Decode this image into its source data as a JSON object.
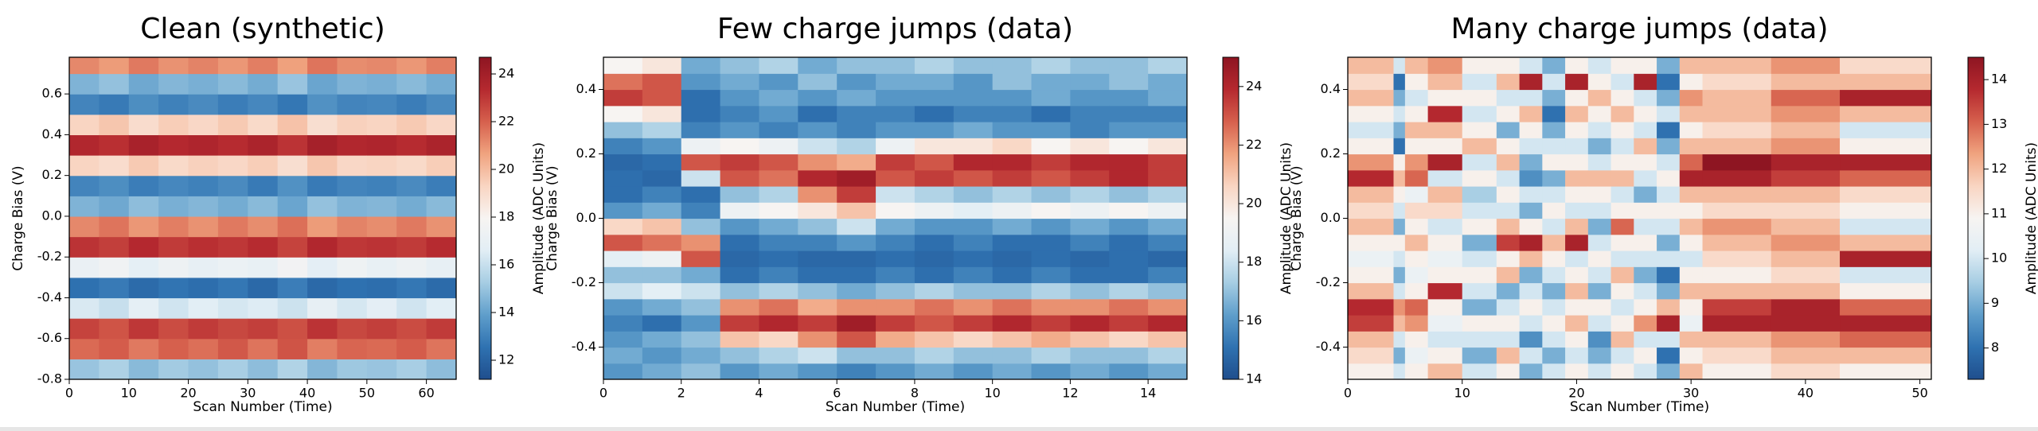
{
  "chart_data": [
    {
      "type": "heatmap",
      "title": "Clean (synthetic)",
      "xlabel": "Scan Number (Time)",
      "ylabel": "Charge Bias (V)",
      "colorbar_label": "Amplitude (ADC Units)",
      "colormap": [
        "#1f4e8d",
        "#2f72b1",
        "#5f9ecb",
        "#a6cde3",
        "#e2eef5",
        "#f7f4f2",
        "#f9d5c2",
        "#f0a37f",
        "#d6604d",
        "#b5292f",
        "#8e1522"
      ],
      "x_edges": [
        0,
        5,
        10,
        15,
        20,
        25,
        30,
        35,
        40,
        45,
        50,
        55,
        60,
        65
      ],
      "y_edges": [
        -0.8,
        -0.7,
        -0.6,
        -0.5,
        -0.4,
        -0.3,
        -0.2,
        -0.1,
        0,
        0.1,
        0.2,
        0.3,
        0.4,
        0.5,
        0.6,
        0.7,
        0.8
      ],
      "values": [
        [
          15.0,
          21.8,
          22.7,
          16.4,
          12.5,
          17.1,
          23.1,
          21.2,
          14.5,
          13.1,
          19.3,
          23.5,
          19.3,
          13.1,
          14.5,
          21.2
        ],
        [
          15.4,
          22.1,
          22.3,
          16.0,
          12.8,
          17.5,
          22.8,
          21.6,
          14.2,
          13.4,
          19.0,
          23.2,
          19.7,
          12.8,
          14.9,
          20.8
        ],
        [
          14.7,
          21.5,
          23.0,
          16.8,
          12.3,
          16.8,
          23.4,
          20.9,
          14.8,
          12.9,
          19.6,
          23.8,
          19.0,
          13.4,
          14.2,
          21.5
        ],
        [
          15.2,
          22.0,
          22.5,
          16.2,
          12.6,
          17.3,
          22.9,
          21.4,
          14.4,
          13.2,
          19.1,
          23.4,
          19.5,
          13.0,
          14.6,
          21.0
        ],
        [
          14.9,
          21.7,
          22.9,
          16.6,
          12.4,
          16.9,
          23.2,
          21.0,
          14.6,
          13.0,
          19.4,
          23.6,
          19.2,
          13.3,
          14.4,
          21.3
        ],
        [
          15.3,
          22.2,
          22.6,
          16.3,
          12.7,
          17.2,
          23.0,
          21.5,
          14.3,
          13.3,
          19.2,
          23.3,
          19.6,
          12.9,
          14.7,
          20.9
        ],
        [
          14.8,
          21.6,
          22.8,
          16.5,
          12.2,
          17.0,
          23.3,
          21.1,
          14.7,
          12.8,
          19.5,
          23.7,
          19.1,
          13.2,
          14.3,
          21.4
        ],
        [
          15.5,
          22.3,
          22.4,
          16.1,
          12.9,
          17.6,
          22.7,
          21.7,
          14.1,
          13.5,
          18.9,
          23.1,
          19.8,
          12.7,
          15.0,
          20.7
        ],
        [
          14.6,
          21.4,
          23.1,
          16.9,
          12.2,
          16.7,
          23.5,
          20.8,
          14.9,
          12.8,
          19.7,
          23.9,
          18.9,
          13.5,
          14.1,
          21.6
        ],
        [
          15.1,
          21.9,
          22.6,
          16.3,
          12.5,
          17.4,
          23.0,
          21.3,
          14.5,
          13.1,
          19.2,
          23.5,
          19.4,
          13.1,
          14.5,
          21.1
        ],
        [
          15.0,
          21.8,
          22.8,
          16.7,
          12.4,
          17.0,
          23.1,
          21.1,
          14.6,
          13.0,
          19.3,
          23.6,
          19.3,
          13.2,
          14.4,
          21.2
        ],
        [
          15.3,
          22.1,
          22.5,
          16.2,
          12.7,
          17.3,
          22.9,
          21.5,
          14.3,
          13.3,
          19.1,
          23.3,
          19.6,
          12.9,
          14.7,
          20.9
        ],
        [
          14.8,
          21.6,
          22.9,
          16.6,
          12.3,
          16.9,
          23.3,
          21.0,
          14.7,
          12.9,
          19.5,
          23.7,
          19.2,
          13.3,
          14.3,
          21.4
        ]
      ],
      "xlim": [
        0,
        65
      ],
      "ylim": [
        -0.8,
        0.78
      ],
      "xticks": [
        0,
        10,
        20,
        30,
        40,
        50,
        60
      ],
      "yticks": [
        -0.8,
        -0.6,
        -0.4,
        -0.2,
        {
          "value": 0,
          "label": "0.0"
        },
        0.2,
        0.4,
        0.6
      ],
      "clim": [
        11.2,
        24.7
      ],
      "cticks": [
        12,
        14,
        16,
        18,
        20,
        22,
        24
      ]
    },
    {
      "type": "heatmap",
      "title": "Few charge jumps (data)",
      "xlabel": "Scan Number (Time)",
      "ylabel": "Charge Bias (V)",
      "colorbar_label": "Amplitude (ADC Units)",
      "colormap": [
        "#1f4e8d",
        "#2f72b1",
        "#5f9ecb",
        "#a6cde3",
        "#e2eef5",
        "#f7f4f2",
        "#f9d5c2",
        "#f0a37f",
        "#d6604d",
        "#b5292f",
        "#8e1522"
      ],
      "x_edges": [
        0,
        1,
        2,
        3,
        4,
        5,
        6,
        7,
        8,
        9,
        10,
        11,
        12,
        13,
        14,
        15
      ],
      "y_edges": [
        -0.5,
        -0.45,
        -0.4,
        -0.35,
        -0.3,
        -0.25,
        -0.2,
        -0.15,
        -0.1,
        -0.05,
        0,
        0.05,
        0.1,
        0.15,
        0.2,
        0.25,
        0.3,
        0.35,
        0.4,
        0.45,
        0.5
      ],
      "values": [
        [
          16,
          16.5,
          16,
          15.5,
          16,
          18,
          17,
          18.5,
          23,
          20.5,
          16,
          15,
          15,
          14.8,
          15.5,
          17,
          19.5,
          23.5,
          22.5,
          19.5
        ],
        [
          16.5,
          16,
          16.5,
          15,
          16.5,
          18.5,
          17,
          19,
          22.5,
          21,
          16.5,
          15.5,
          14.8,
          15,
          16,
          17.5,
          20,
          23,
          23,
          20
        ],
        [
          17,
          16.5,
          17,
          16,
          17,
          18,
          16.5,
          23,
          22,
          17,
          15.5,
          15,
          18,
          23,
          19,
          15.5,
          15,
          15,
          16,
          16.5
        ],
        [
          16,
          17,
          21,
          23.5,
          22,
          17,
          15,
          14.8,
          15,
          16,
          19,
          17,
          23,
          23.5,
          19.5,
          16,
          15.5,
          16,
          16.5,
          17
        ],
        [
          16.5,
          17.5,
          20.5,
          24,
          22.5,
          17.5,
          15.5,
          15,
          15.5,
          16.5,
          19.5,
          17.5,
          22.5,
          23,
          19,
          15.5,
          16,
          16.5,
          16,
          17.5
        ],
        [
          16,
          18,
          22,
          23.5,
          21.5,
          17,
          15,
          14.8,
          15.5,
          17,
          20,
          22,
          24,
          22,
          18,
          16,
          15,
          16,
          17,
          16.5
        ],
        [
          15.5,
          17,
          23,
          24.5,
          22,
          16.5,
          15,
          14.8,
          16,
          18,
          21,
          23.5,
          24.5,
          21.5,
          17.5,
          15.5,
          15.5,
          16.5,
          16,
          17
        ],
        [
          16,
          17,
          21.5,
          23.5,
          22,
          17,
          15.5,
          15,
          15.5,
          16.5,
          19.5,
          18,
          23,
          23.5,
          19,
          16,
          15.5,
          16,
          16.5,
          17
        ],
        [
          16.5,
          17.5,
          21,
          23,
          22.5,
          17.5,
          15,
          14.8,
          15,
          16,
          19,
          17.5,
          23.5,
          23,
          20,
          16,
          15,
          16,
          16.5,
          17.5
        ],
        [
          16,
          17,
          20.5,
          23.5,
          22,
          17,
          15.5,
          15,
          15.5,
          16,
          18.5,
          17,
          23,
          24,
          20,
          16.5,
          15.5,
          16,
          16,
          17
        ],
        [
          16.5,
          17,
          21,
          24,
          22.5,
          17,
          15,
          14.8,
          15,
          16.5,
          19,
          17.5,
          23.5,
          24,
          20.5,
          16,
          15.5,
          16,
          17,
          17
        ],
        [
          16,
          17.5,
          21.5,
          23.5,
          22,
          17.5,
          15.5,
          15,
          15,
          16,
          19.5,
          17,
          23,
          23.5,
          19.5,
          16,
          15,
          16.5,
          16.5,
          17.5
        ],
        [
          16.5,
          17,
          21,
          24,
          22,
          17,
          15,
          14.8,
          15.5,
          16.5,
          19,
          17.5,
          23.5,
          24,
          20,
          15.5,
          15.5,
          16,
          16.5,
          17
        ],
        [
          16,
          17,
          20.5,
          23.5,
          22.5,
          17.5,
          15,
          15,
          15,
          16,
          19.5,
          17,
          24,
          24,
          19.5,
          16,
          15.5,
          16,
          17,
          17
        ],
        [
          16.5,
          17.5,
          21,
          24,
          22,
          17,
          15.5,
          14.8,
          15.5,
          16.5,
          19,
          17.5,
          23.5,
          23.5,
          20,
          16,
          15.5,
          16.5,
          16.5,
          17.5
        ]
      ],
      "xlim": [
        0,
        15
      ],
      "ylim": [
        -0.5,
        0.5
      ],
      "xticks": [
        0,
        2,
        4,
        6,
        8,
        10,
        12,
        14
      ],
      "yticks": [
        -0.4,
        -0.2,
        {
          "value": 0,
          "label": "0.0"
        },
        0.2,
        0.4
      ],
      "clim": [
        14,
        25
      ],
      "cticks": [
        14,
        16,
        18,
        20,
        22,
        24
      ]
    },
    {
      "type": "heatmap",
      "title": "Many charge jumps (data)",
      "xlabel": "Scan Number (Time)",
      "ylabel": "Charge Bias (V)",
      "colorbar_label": "Amplitude (ADC Units)",
      "colormap": [
        "#1f4e8d",
        "#2f72b1",
        "#5f9ecb",
        "#a6cde3",
        "#e2eef5",
        "#f7f4f2",
        "#f9d5c2",
        "#f0a37f",
        "#d6604d",
        "#b5292f",
        "#8e1522"
      ],
      "x_edges": [
        0,
        4,
        5,
        7,
        10,
        13,
        15,
        17,
        19,
        21,
        23,
        25,
        27,
        29,
        31,
        37,
        43,
        51
      ],
      "y_edges": [
        -0.5,
        -0.45,
        -0.4,
        -0.35,
        -0.3,
        -0.25,
        -0.2,
        -0.15,
        -0.1,
        -0.05,
        0,
        0.05,
        0.1,
        0.15,
        0.2,
        0.25,
        0.3,
        0.35,
        0.4,
        0.45,
        0.5
      ],
      "values": [
        [
          11,
          11.5,
          12,
          13.5,
          13.8,
          12,
          11,
          10.5,
          11,
          12,
          11.5,
          12,
          13.8,
          12.5,
          11,
          10,
          11,
          12,
          11.5,
          12
        ],
        [
          10,
          9,
          10,
          12,
          12.5,
          10,
          9,
          10,
          11,
          9,
          10,
          11,
          12,
          11,
          8,
          9,
          10,
          9,
          8,
          10
        ],
        [
          11,
          10.5,
          11,
          12.5,
          13,
          11,
          10.5,
          11,
          12,
          11,
          11.5,
          10.5,
          13,
          12.5,
          11,
          12,
          11,
          10,
          11,
          12
        ],
        [
          12,
          11,
          10,
          10.5,
          11,
          13.8,
          11,
          10.5,
          11,
          10,
          11.5,
          12,
          10,
          14,
          11,
          12,
          13.8,
          11,
          12,
          12.5
        ],
        [
          10,
          9,
          10,
          11,
          9,
          10,
          11,
          10,
          9,
          11,
          10,
          9.5,
          11,
          10,
          12,
          11,
          10,
          11,
          10,
          11
        ],
        [
          11,
          12,
          10,
          11,
          10,
          9,
          12,
          11,
          13.5,
          12,
          10,
          11,
          10,
          12,
          11,
          9,
          11,
          10,
          12,
          11
        ],
        [
          9,
          10,
          8.5,
          10,
          11,
          10,
          9,
          12,
          14,
          11,
          9,
          10,
          8.5,
          9,
          10,
          11,
          12,
          10,
          14,
          10
        ],
        [
          10,
          9,
          10,
          11,
          10,
          9,
          10,
          11,
          12,
          10,
          11,
          10,
          9,
          11,
          10,
          9,
          8,
          9,
          10,
          9
        ],
        [
          11,
          10,
          11,
          12,
          11,
          12,
          11,
          10,
          14,
          12,
          10,
          11,
          12,
          11,
          10,
          11,
          12,
          11,
          14,
          11
        ],
        [
          10,
          9,
          8.5,
          10,
          11,
          9,
          10,
          11,
          10,
          9,
          10,
          11,
          12,
          10,
          9,
          10,
          11,
          12,
          11,
          10
        ],
        [
          11,
          10,
          12,
          11,
          10,
          11,
          12,
          10,
          11,
          13,
          11,
          10,
          12,
          11,
          10,
          11,
          12,
          11,
          10,
          11
        ],
        [
          10,
          11,
          10,
          12.5,
          11,
          10,
          9,
          10,
          11,
          10,
          11,
          9,
          10,
          11,
          12,
          10,
          11,
          10,
          14,
          11
        ],
        [
          9,
          8,
          10,
          14,
          12,
          9,
          8,
          10,
          9,
          10,
          11,
          10,
          11,
          10,
          9,
          8,
          10,
          9,
          8,
          9
        ],
        [
          12,
          11,
          12,
          10.5,
          11,
          12,
          11,
          10,
          11,
          12,
          11,
          12,
          14,
          13,
          12,
          11,
          12,
          12.5,
          11,
          12
        ],
        [
          11,
          11.5,
          12,
          14,
          13.5,
          12,
          11,
          11.5,
          12,
          12.5,
          11.5,
          12,
          14,
          14.5,
          12,
          11.5,
          12,
          12,
          11.5,
          12
        ],
        [
          11.5,
          12,
          12.5,
          14,
          14,
          12,
          11.5,
          12,
          12.5,
          12,
          11.5,
          12,
          13.5,
          14,
          12.5,
          12,
          12.5,
          13,
          12,
          12.5
        ],
        [
          11,
          12,
          13,
          14,
          13,
          11,
          10,
          14,
          12,
          10,
          11,
          11.5,
          13,
          14,
          11,
          10,
          12,
          14,
          12,
          11.5
        ]
      ],
      "xlim": [
        0,
        51
      ],
      "ylim": [
        -0.5,
        0.5
      ],
      "xticks": [
        0,
        10,
        20,
        30,
        40,
        50
      ],
      "yticks": [
        -0.4,
        -0.2,
        {
          "value": 0,
          "label": "0.0"
        },
        0.2,
        0.4
      ],
      "clim": [
        7.3,
        14.5
      ],
      "cticks": [
        8,
        9,
        10,
        11,
        12,
        13,
        14
      ]
    }
  ]
}
